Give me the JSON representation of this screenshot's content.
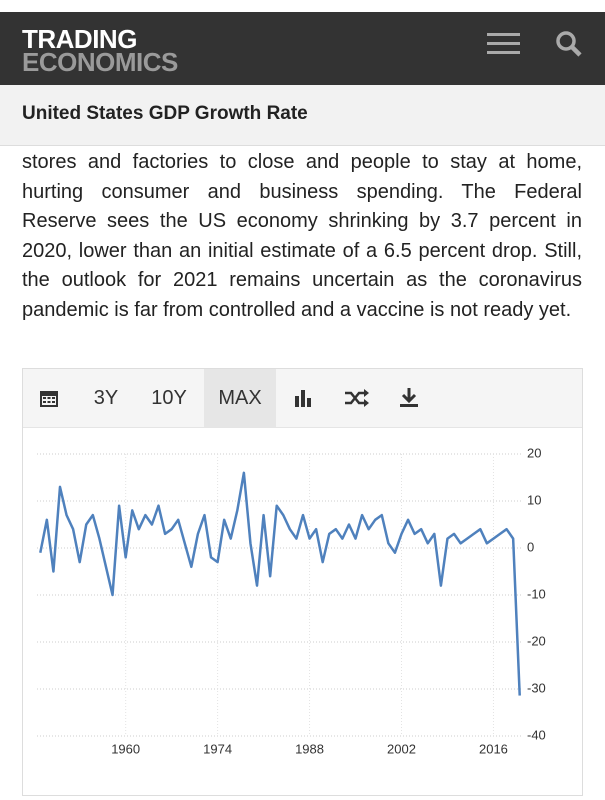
{
  "header": {
    "logo_top": "TRADING",
    "logo_bottom": "ECONOMICS"
  },
  "title": "United States GDP Growth Rate",
  "paragraph": "stores and factories to close and people to stay at home, hurting consumer and business spending. The Federal Reserve sees the US economy shrinking by 3.7 percent in 2020, lower than an initial estimate of a 6.5 percent drop. Still, the outlook for 2021 remains uncertain as the coronavirus pandemic is far from controlled and a vaccine is not ready yet.",
  "toolbar": [
    "3Y",
    "10Y",
    "MAX"
  ],
  "chart_data": {
    "type": "line",
    "x": [
      1947,
      1948,
      1949,
      1950,
      1951,
      1952,
      1953,
      1954,
      1955,
      1956,
      1957,
      1958,
      1959,
      1960,
      1961,
      1962,
      1963,
      1964,
      1965,
      1966,
      1967,
      1968,
      1969,
      1970,
      1971,
      1972,
      1973,
      1974,
      1975,
      1976,
      1977,
      1978,
      1979,
      1980,
      1981,
      1982,
      1983,
      1984,
      1985,
      1986,
      1987,
      1988,
      1989,
      1990,
      1991,
      1992,
      1993,
      1994,
      1995,
      1996,
      1997,
      1998,
      1999,
      2000,
      2001,
      2002,
      2003,
      2004,
      2005,
      2006,
      2007,
      2008,
      2009,
      2010,
      2011,
      2012,
      2013,
      2014,
      2015,
      2016,
      2017,
      2018,
      2019,
      2020
    ],
    "series": [
      {
        "name": "GDP Growth Rate",
        "color": "#4f81bd",
        "values": [
          -1,
          6,
          -5,
          13,
          7,
          4,
          -3,
          5,
          7,
          2,
          -4,
          -10,
          9,
          -2,
          8,
          4,
          7,
          5,
          9,
          3,
          4,
          6,
          1,
          -4,
          3,
          7,
          -2,
          -3,
          6,
          2,
          8,
          16,
          1,
          -8,
          7,
          -6,
          9,
          7,
          4,
          2,
          7,
          2,
          4,
          -3,
          3,
          4,
          2,
          5,
          2,
          7,
          4,
          6,
          7,
          1,
          -1,
          3,
          6,
          3,
          4,
          1,
          3,
          -8,
          2,
          3,
          1,
          2,
          3,
          4,
          1,
          2,
          3,
          4,
          2,
          -31.4
        ]
      }
    ],
    "xlim": [
      1946.5,
      2020.5
    ],
    "xticks": [
      1960,
      1974,
      1988,
      2002,
      2016
    ],
    "ylim": [
      -40,
      20
    ],
    "yticks": [
      20,
      10,
      0,
      -10,
      -20,
      -30,
      -40
    ],
    "grid": true
  }
}
